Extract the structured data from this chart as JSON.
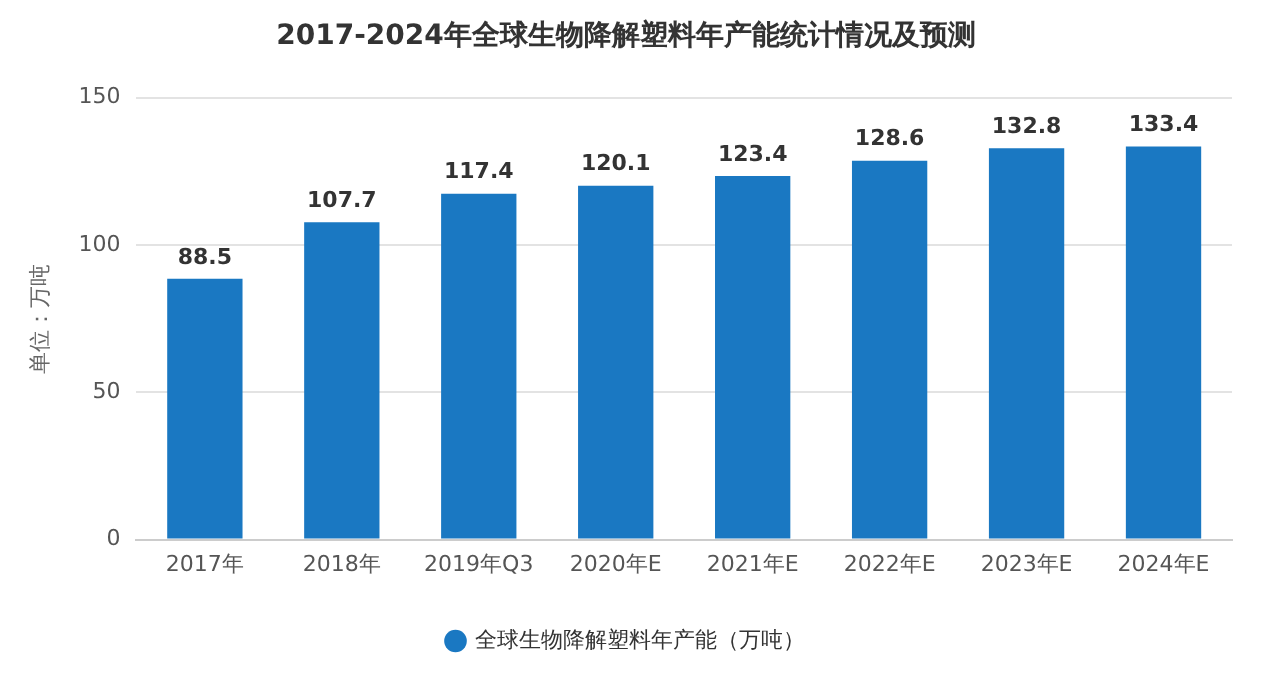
{
  "chart_data": {
    "type": "bar",
    "title": "2017-2024年全球生物降解塑料年产能统计情况及预测",
    "ylabel": "单位：万吨",
    "categories": [
      "2017年",
      "2018年",
      "2019年Q3",
      "2020年E",
      "2021年E",
      "2022年E",
      "2023年E",
      "2024年E"
    ],
    "series": [
      {
        "name": "全球生物降解塑料年产能（万吨）",
        "color": "#1a78c2",
        "values": [
          88.5,
          107.7,
          117.4,
          120.1,
          123.4,
          128.6,
          132.8,
          133.4
        ]
      }
    ],
    "ylim": [
      0,
      150
    ],
    "yticks": [
      0,
      50,
      100,
      150
    ],
    "grid": "y",
    "legend": "bottom",
    "data_labels": true
  }
}
